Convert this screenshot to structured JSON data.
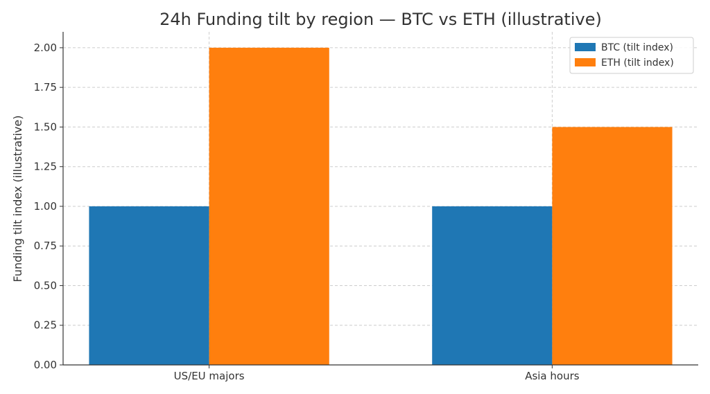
{
  "chart_data": {
    "type": "bar",
    "title": "24h Funding tilt by region — BTC vs ETH (illustrative)",
    "xlabel": "",
    "ylabel": "Funding tilt index (illustrative)",
    "categories": [
      "US/EU majors",
      "Asia hours"
    ],
    "series": [
      {
        "name": "BTC (tilt index)",
        "values": [
          1.0,
          1.0
        ],
        "color": "#1f77b4"
      },
      {
        "name": "ETH (tilt index)",
        "values": [
          2.0,
          1.5
        ],
        "color": "#ff7f0e"
      }
    ],
    "ylim": [
      0,
      2.1
    ],
    "yticks": [
      "0.00",
      "0.25",
      "0.50",
      "0.75",
      "1.00",
      "1.25",
      "1.50",
      "1.75",
      "2.00"
    ],
    "grid": true,
    "legend_position": "top-right"
  }
}
